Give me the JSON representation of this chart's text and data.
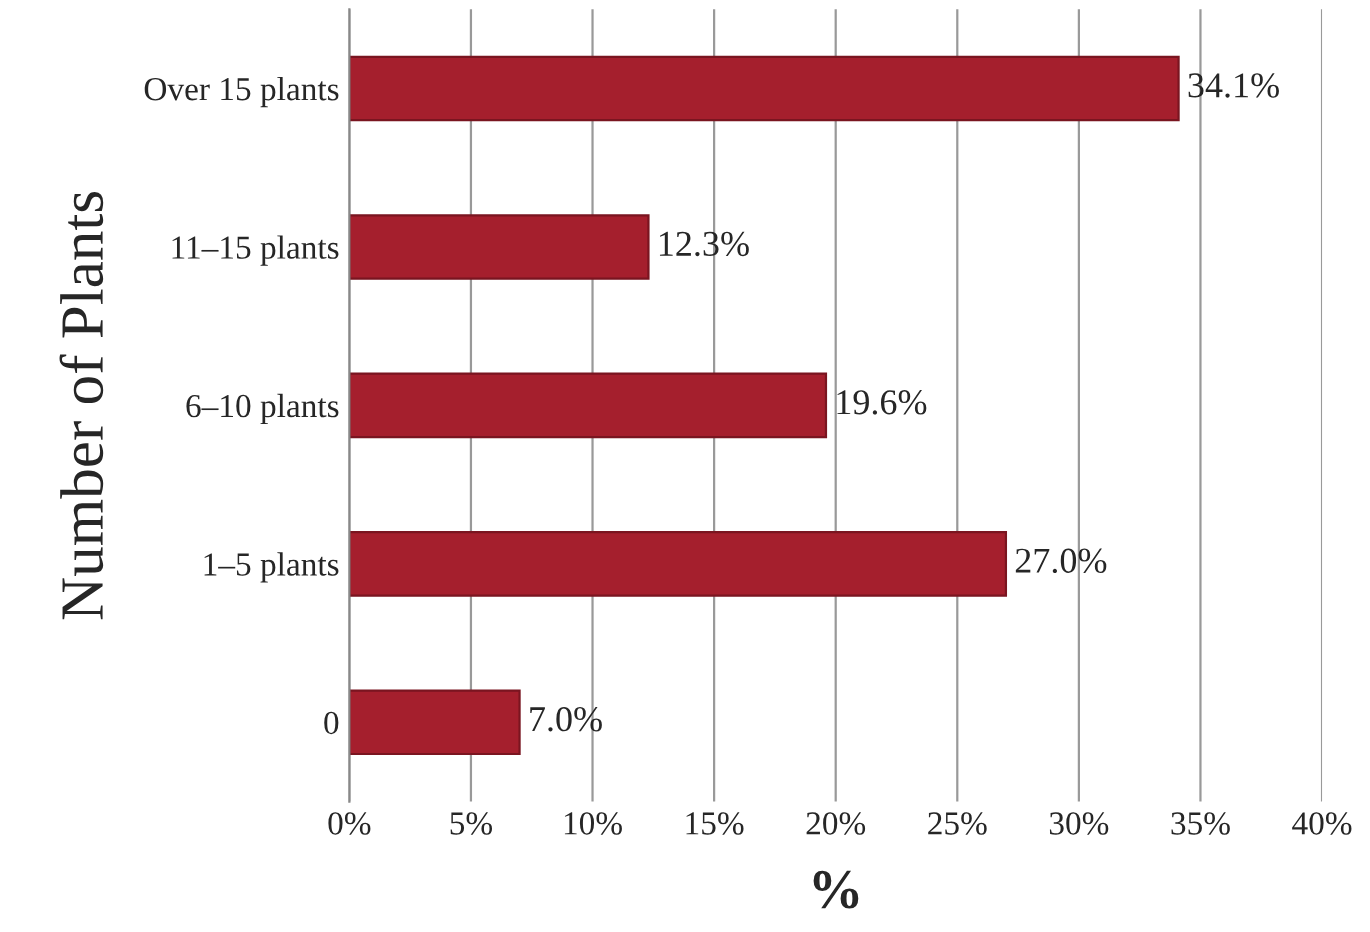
{
  "chart_data": {
    "type": "bar",
    "orientation": "horizontal",
    "categories": [
      "Over 15 plants",
      "11–15 plants",
      "6–10 plants",
      "1–5 plants",
      "0"
    ],
    "values": [
      34.1,
      12.3,
      19.6,
      27.0,
      7.0
    ],
    "value_labels": [
      "34.1%",
      "12.3%",
      "19.6%",
      "27.0%",
      "7.0%"
    ],
    "color": "#a51f2d",
    "xlabel": "%",
    "ylabel": "Number of Plants",
    "xlim": [
      0,
      40
    ],
    "xticks": [
      {
        "value": 0,
        "label": "0%"
      },
      {
        "value": 5,
        "label": "5%"
      },
      {
        "value": 10,
        "label": "10%"
      },
      {
        "value": 15,
        "label": "15%"
      },
      {
        "value": 20,
        "label": "20%"
      },
      {
        "value": 25,
        "label": "25%"
      },
      {
        "value": 30,
        "label": "30%"
      },
      {
        "value": 35,
        "label": "35%"
      },
      {
        "value": 40,
        "label": "40%"
      }
    ],
    "grid": "x"
  }
}
